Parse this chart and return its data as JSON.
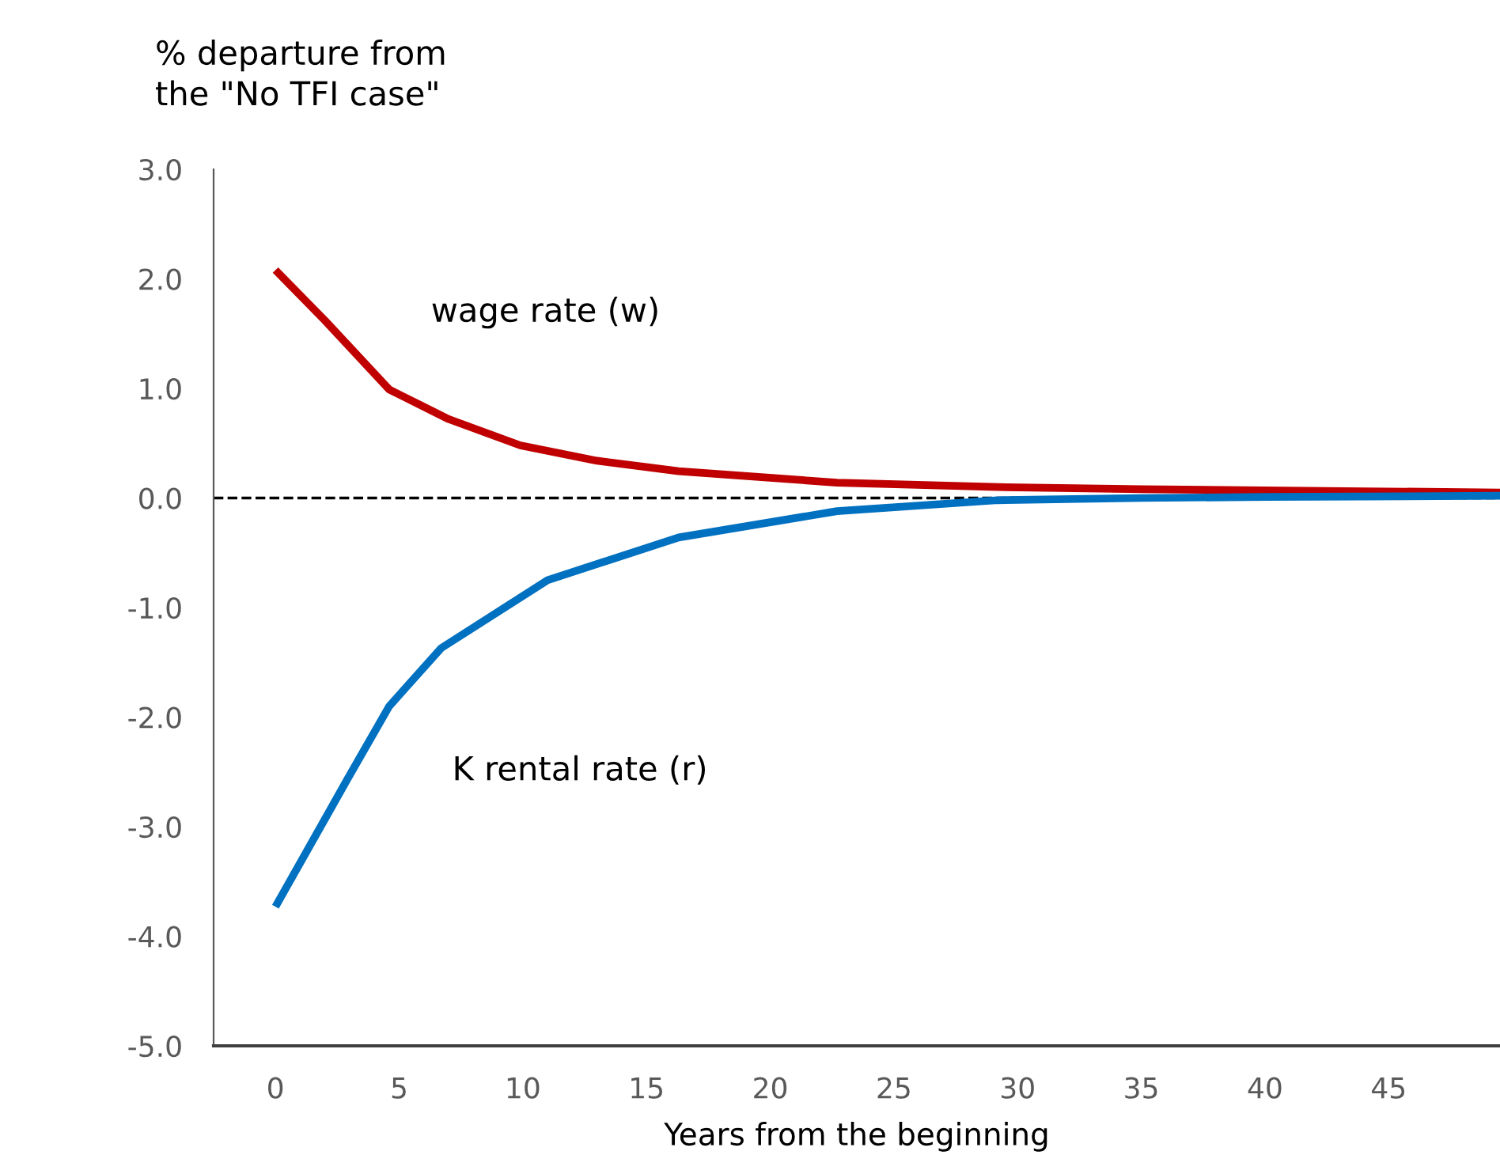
{
  "chart_data": {
    "type": "line",
    "ylabel": "% departure from\nthe \"No TFI case\"",
    "xlabel": "Years from the beginning",
    "series": [
      {
        "name": "wage rate (w)",
        "color": "#c00000",
        "x": [
          0,
          2,
          4.6,
          7,
          9.9,
          13,
          16.3,
          22.7,
          29.2,
          35,
          40,
          49.5
        ],
        "values": [
          2.08,
          1.62,
          0.99,
          0.72,
          0.48,
          0.34,
          0.245,
          0.14,
          0.1,
          0.08,
          0.07,
          0.05
        ]
      },
      {
        "name": "K rental rate (r)",
        "color": "#0070c0",
        "x": [
          0,
          2.9,
          4.6,
          6.7,
          11,
          16.3,
          22.7,
          29.2,
          35,
          40,
          49.5
        ],
        "values": [
          -3.73,
          -2.57,
          -1.9,
          -1.37,
          -0.75,
          -0.36,
          -0.12,
          -0.02,
          0.0,
          0.01,
          0.02
        ]
      }
    ],
    "xlim": [
      -2.5,
      49.5
    ],
    "xticks": [
      0,
      5,
      10,
      15,
      20,
      25,
      30,
      35,
      40,
      45
    ],
    "ylim": [
      -5,
      3
    ],
    "yticks": [
      {
        "value": -5,
        "label": "-5.0"
      },
      {
        "value": -4,
        "label": "-4.0"
      },
      {
        "value": -3,
        "label": "-3.0"
      },
      {
        "value": -2,
        "label": "-2.0"
      },
      {
        "value": -1,
        "label": "-1.0"
      },
      {
        "value": 0,
        "label": "0.0"
      },
      {
        "value": 1,
        "label": "1.0"
      },
      {
        "value": 2,
        "label": "2.0"
      },
      {
        "value": 3,
        "label": "3.0"
      }
    ],
    "ref_lines": [
      {
        "axis": "y",
        "value": 0,
        "color": "#000000",
        "line_style": "dashed"
      }
    ],
    "grid": false,
    "legend": false,
    "marker": "none",
    "line_style": "solid"
  }
}
